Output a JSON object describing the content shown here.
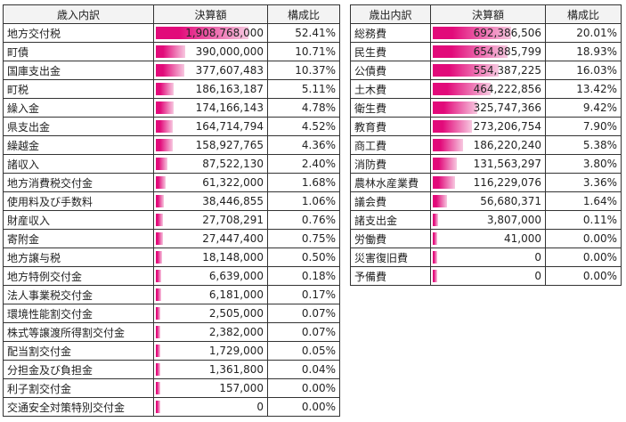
{
  "accent": "#e20a7a",
  "chart_data": [
    {
      "type": "table",
      "title": "歳入",
      "columns": [
        "歳入内訳",
        "決算額",
        "構成比"
      ],
      "rows": [
        [
          "地方交付税",
          "1,908,768,000",
          "52.41%",
          1908768000
        ],
        [
          "町債",
          "390,000,000",
          "10.71%",
          390000000
        ],
        [
          "国庫支出金",
          "377,607,483",
          "10.37%",
          377607483
        ],
        [
          "町税",
          "186,163,187",
          "5.11%",
          186163187
        ],
        [
          "繰入金",
          "174,166,143",
          "4.78%",
          174166143
        ],
        [
          "県支出金",
          "164,714,794",
          "4.52%",
          164714794
        ],
        [
          "繰越金",
          "158,927,765",
          "4.36%",
          158927765
        ],
        [
          "諸収入",
          "87,522,130",
          "2.40%",
          87522130
        ],
        [
          "地方消費税交付金",
          "61,322,000",
          "1.68%",
          61322000
        ],
        [
          "使用料及び手数料",
          "38,446,855",
          "1.06%",
          38446855
        ],
        [
          "財産収入",
          "27,708,291",
          "0.76%",
          27708291
        ],
        [
          "寄附金",
          "27,447,400",
          "0.75%",
          27447400
        ],
        [
          "地方譲与税",
          "18,148,000",
          "0.50%",
          18148000
        ],
        [
          "地方特例交付金",
          "6,639,000",
          "0.18%",
          6639000
        ],
        [
          "法人事業税交付金",
          "6,181,000",
          "0.17%",
          6181000
        ],
        [
          "環境性能割交付金",
          "2,505,000",
          "0.07%",
          2505000
        ],
        [
          "株式等譲渡所得割交付金",
          "2,382,000",
          "0.07%",
          2382000
        ],
        [
          "配当割交付金",
          "1,729,000",
          "0.05%",
          1729000
        ],
        [
          "分担金及び負担金",
          "1,361,800",
          "0.04%",
          1361800
        ],
        [
          "利子割交付金",
          "157,000",
          "0.00%",
          157000
        ],
        [
          "交通安全対策特別交付金",
          "0",
          "0.00%",
          0
        ]
      ]
    },
    {
      "type": "table",
      "title": "歳出",
      "columns": [
        "歳出内訳",
        "決算額",
        "構成比"
      ],
      "rows": [
        [
          "総務費",
          "692,386,506",
          "20.01%",
          692386506
        ],
        [
          "民生費",
          "654,885,799",
          "18.93%",
          654885799
        ],
        [
          "公債費",
          "554,387,225",
          "16.03%",
          554387225
        ],
        [
          "土木費",
          "464,222,856",
          "13.42%",
          464222856
        ],
        [
          "衛生費",
          "325,747,366",
          "9.42%",
          325747366
        ],
        [
          "教育費",
          "273,206,754",
          "7.90%",
          273206754
        ],
        [
          "商工費",
          "186,220,240",
          "5.38%",
          186220240
        ],
        [
          "消防費",
          "131,563,297",
          "3.80%",
          131563297
        ],
        [
          "農林水産業費",
          "116,229,076",
          "3.36%",
          116229076
        ],
        [
          "議会費",
          "56,680,371",
          "1.64%",
          56680371
        ],
        [
          "諸支出金",
          "3,807,000",
          "0.11%",
          3807000
        ],
        [
          "労働費",
          "41,000",
          "0.00%",
          41000
        ],
        [
          "災害復旧費",
          "0",
          "0.00%",
          0
        ],
        [
          "予備費",
          "0",
          "0.00%",
          0
        ]
      ]
    }
  ]
}
